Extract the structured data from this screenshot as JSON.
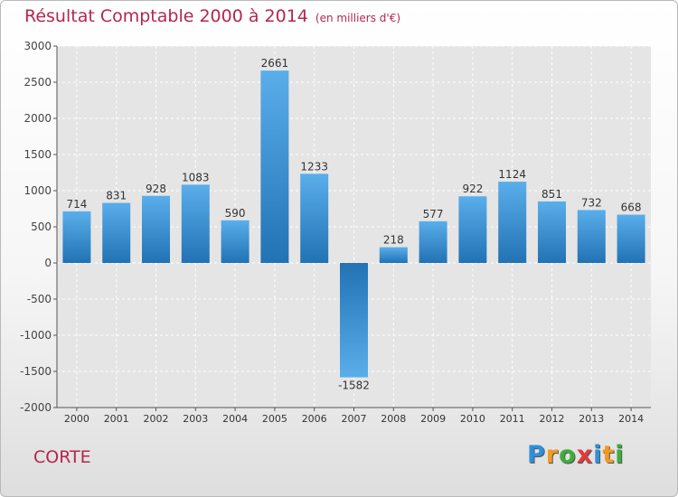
{
  "chart_data": {
    "type": "bar",
    "title": "Résultat Comptable 2000 à 2014",
    "subtitle": "(en milliers d'€)",
    "categories": [
      "2000",
      "2001",
      "2002",
      "2003",
      "2004",
      "2005",
      "2006",
      "2007",
      "2008",
      "2009",
      "2010",
      "2011",
      "2012",
      "2013",
      "2014"
    ],
    "values": [
      714,
      831,
      928,
      1083,
      590,
      2661,
      1233,
      -1582,
      218,
      577,
      922,
      1124,
      851,
      732,
      668
    ],
    "value_labels": [
      "714",
      "831",
      "928",
      "1083",
      "590",
      "2661",
      "1233",
      "-1582",
      "218",
      "577",
      "922",
      "1124",
      "851",
      "732",
      "668"
    ],
    "yticks": [
      3000,
      2500,
      2000,
      1500,
      1000,
      500,
      0,
      -500,
      -1000,
      -1500,
      -2000
    ],
    "ytick_labels": [
      "3000",
      "2500",
      "2000",
      "1500",
      "1000",
      "500",
      "0",
      "-500",
      "-1000",
      "-1500",
      "-2000"
    ],
    "ylim": [
      -2000,
      3000
    ],
    "xlabel": "",
    "ylabel": "",
    "grid": true,
    "bar_color": "#3a8fd4"
  },
  "footer": {
    "place": "CORTE",
    "logo_letters": [
      "P",
      "r",
      "o",
      "x",
      "i",
      "t",
      "i"
    ],
    "logo_colors": [
      "#2f8fd8",
      "#f29a1f",
      "#3dae3a",
      "#e23a3a",
      "#2f8fd8",
      "#f29a1f",
      "#3dae3a"
    ]
  }
}
